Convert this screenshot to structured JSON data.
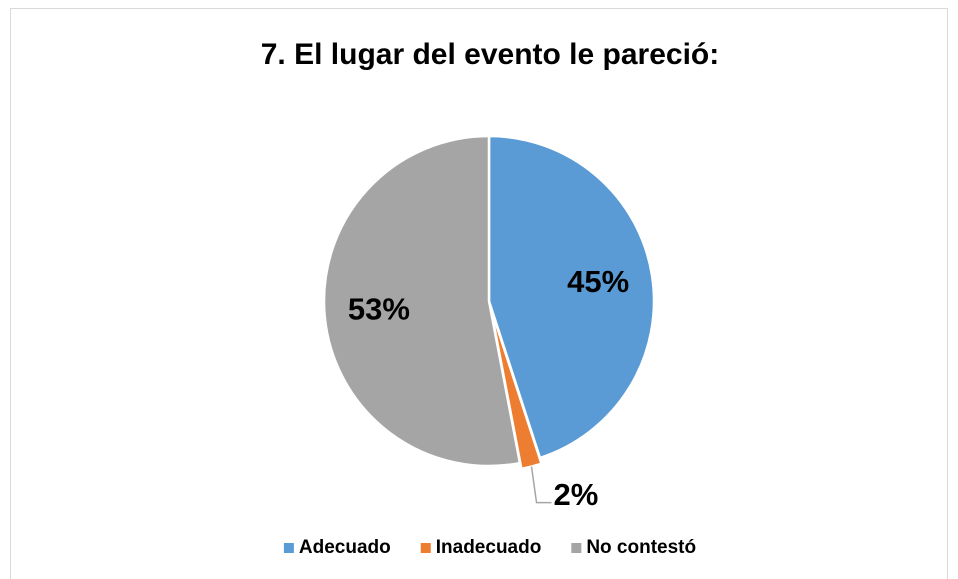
{
  "chart_data": {
    "type": "pie",
    "title": "7. El lugar del evento le pareció:",
    "categories": [
      "Adecuado",
      "Inadecuado",
      "No contestó"
    ],
    "values": [
      45,
      2,
      53
    ],
    "value_labels": [
      "45%",
      "2%",
      "53%"
    ],
    "colors": [
      "#5b9bd5",
      "#ed7d31",
      "#a5a5a5"
    ],
    "legend": "bottom"
  }
}
